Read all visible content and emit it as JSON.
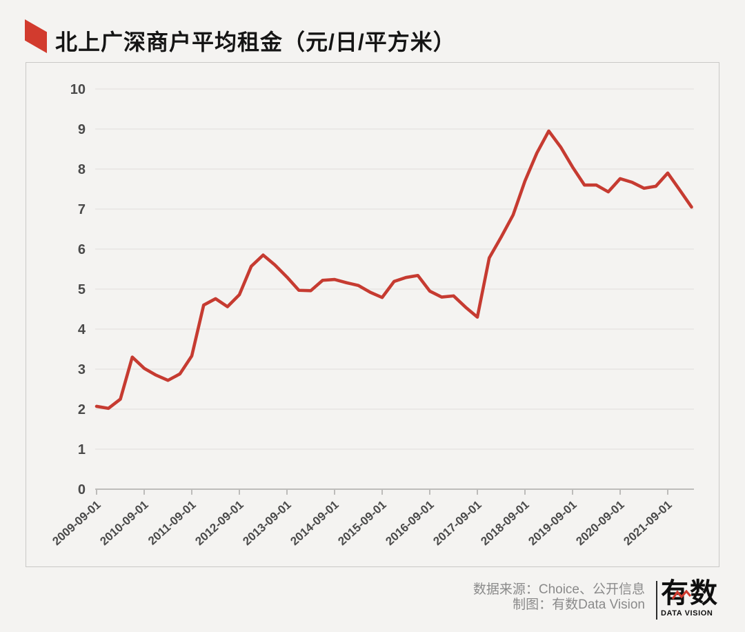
{
  "page": {
    "background": "#f4f3f1"
  },
  "header": {
    "title": "北上广深商户平均租金（元/日/平方米）",
    "marker_color": "#d23b2e"
  },
  "chart_data": {
    "type": "line",
    "title": "北上广深商户平均租金（元/日/平方米）",
    "ylabel": "",
    "xlabel": "",
    "unit": "元/日/平方米",
    "series_name": "北上广深商户平均租金",
    "series_color": "#c63b31",
    "grid": true,
    "legend_position": "none",
    "ylim": [
      0,
      10
    ],
    "y_ticks": [
      0,
      1,
      2,
      3,
      4,
      5,
      6,
      7,
      8,
      9,
      10
    ],
    "x_tick_labels": [
      "2009-09-01",
      "2010-09-01",
      "2011-09-01",
      "2012-09-01",
      "2013-09-01",
      "2014-09-01",
      "2015-09-01",
      "2016-09-01",
      "2017-09-01",
      "2018-09-01",
      "2019-09-01",
      "2020-09-01",
      "2021-09-01"
    ],
    "period_start": "2009-09-01",
    "period_step_months": 3,
    "values": [
      2.07,
      2.02,
      2.25,
      3.3,
      3.02,
      2.85,
      2.72,
      2.88,
      3.33,
      4.6,
      4.76,
      4.56,
      4.86,
      5.57,
      5.85,
      5.6,
      5.3,
      4.97,
      4.96,
      5.22,
      5.24,
      5.16,
      5.09,
      4.92,
      4.79,
      5.19,
      5.29,
      5.34,
      4.95,
      4.8,
      4.83,
      4.55,
      4.3,
      5.78,
      6.3,
      6.85,
      7.7,
      8.4,
      8.95,
      8.55,
      8.05,
      7.6,
      7.6,
      7.43,
      7.76,
      7.67,
      7.52,
      7.57,
      7.9,
      7.48,
      7.05
    ],
    "colors": {
      "gridline": "#e3e2e0",
      "axis": "#bdbcba",
      "tick_label": "#4a4a4a"
    }
  },
  "footer": {
    "source_line": "数据来源：Choice、公开信息",
    "credit_line": "制图：有数Data Vision",
    "logo_text": "有数",
    "logo_subtext": "DATA VISION",
    "logo_accent_color": "#cf3a2e"
  }
}
